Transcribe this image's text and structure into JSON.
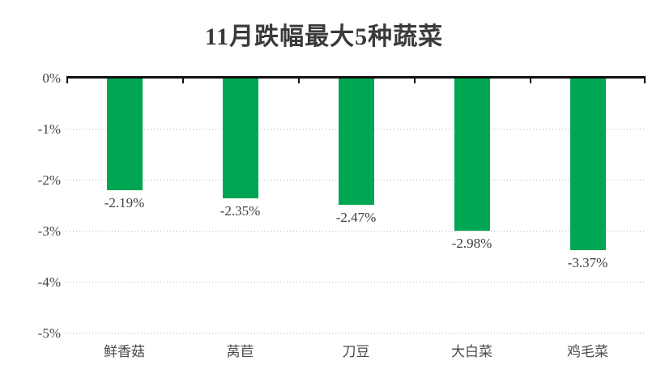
{
  "title": "11月跌幅最大5种蔬菜",
  "colors": {
    "bar": "#00a651",
    "axis": "#111111",
    "gridline": "#b3b3b3",
    "title_text": "#3a3a3a",
    "label_text": "#3d3d3d"
  },
  "chart_data": {
    "type": "bar",
    "title": "11月跌幅最大5种蔬菜",
    "categories": [
      "鲜香菇",
      "莴苣",
      "刀豆",
      "大白菜",
      "鸡毛菜"
    ],
    "values": [
      -2.19,
      -2.35,
      -2.47,
      -2.98,
      -3.37
    ],
    "data_labels": [
      "-2.19%",
      "-2.35%",
      "-2.47%",
      "-2.98%",
      "-3.37%"
    ],
    "xlabel": "",
    "ylabel": "",
    "ylim": [
      -5,
      0
    ],
    "ytick_labels": [
      "0%",
      "-1%",
      "-2%",
      "-3%",
      "-4%",
      "-5%"
    ],
    "ytick_values": [
      0,
      -1,
      -2,
      -3,
      -4,
      -5
    ],
    "grid": "horizontal-dotted",
    "legend": "none",
    "bar_color": "#00a651",
    "orientation": "vertical-negative"
  }
}
